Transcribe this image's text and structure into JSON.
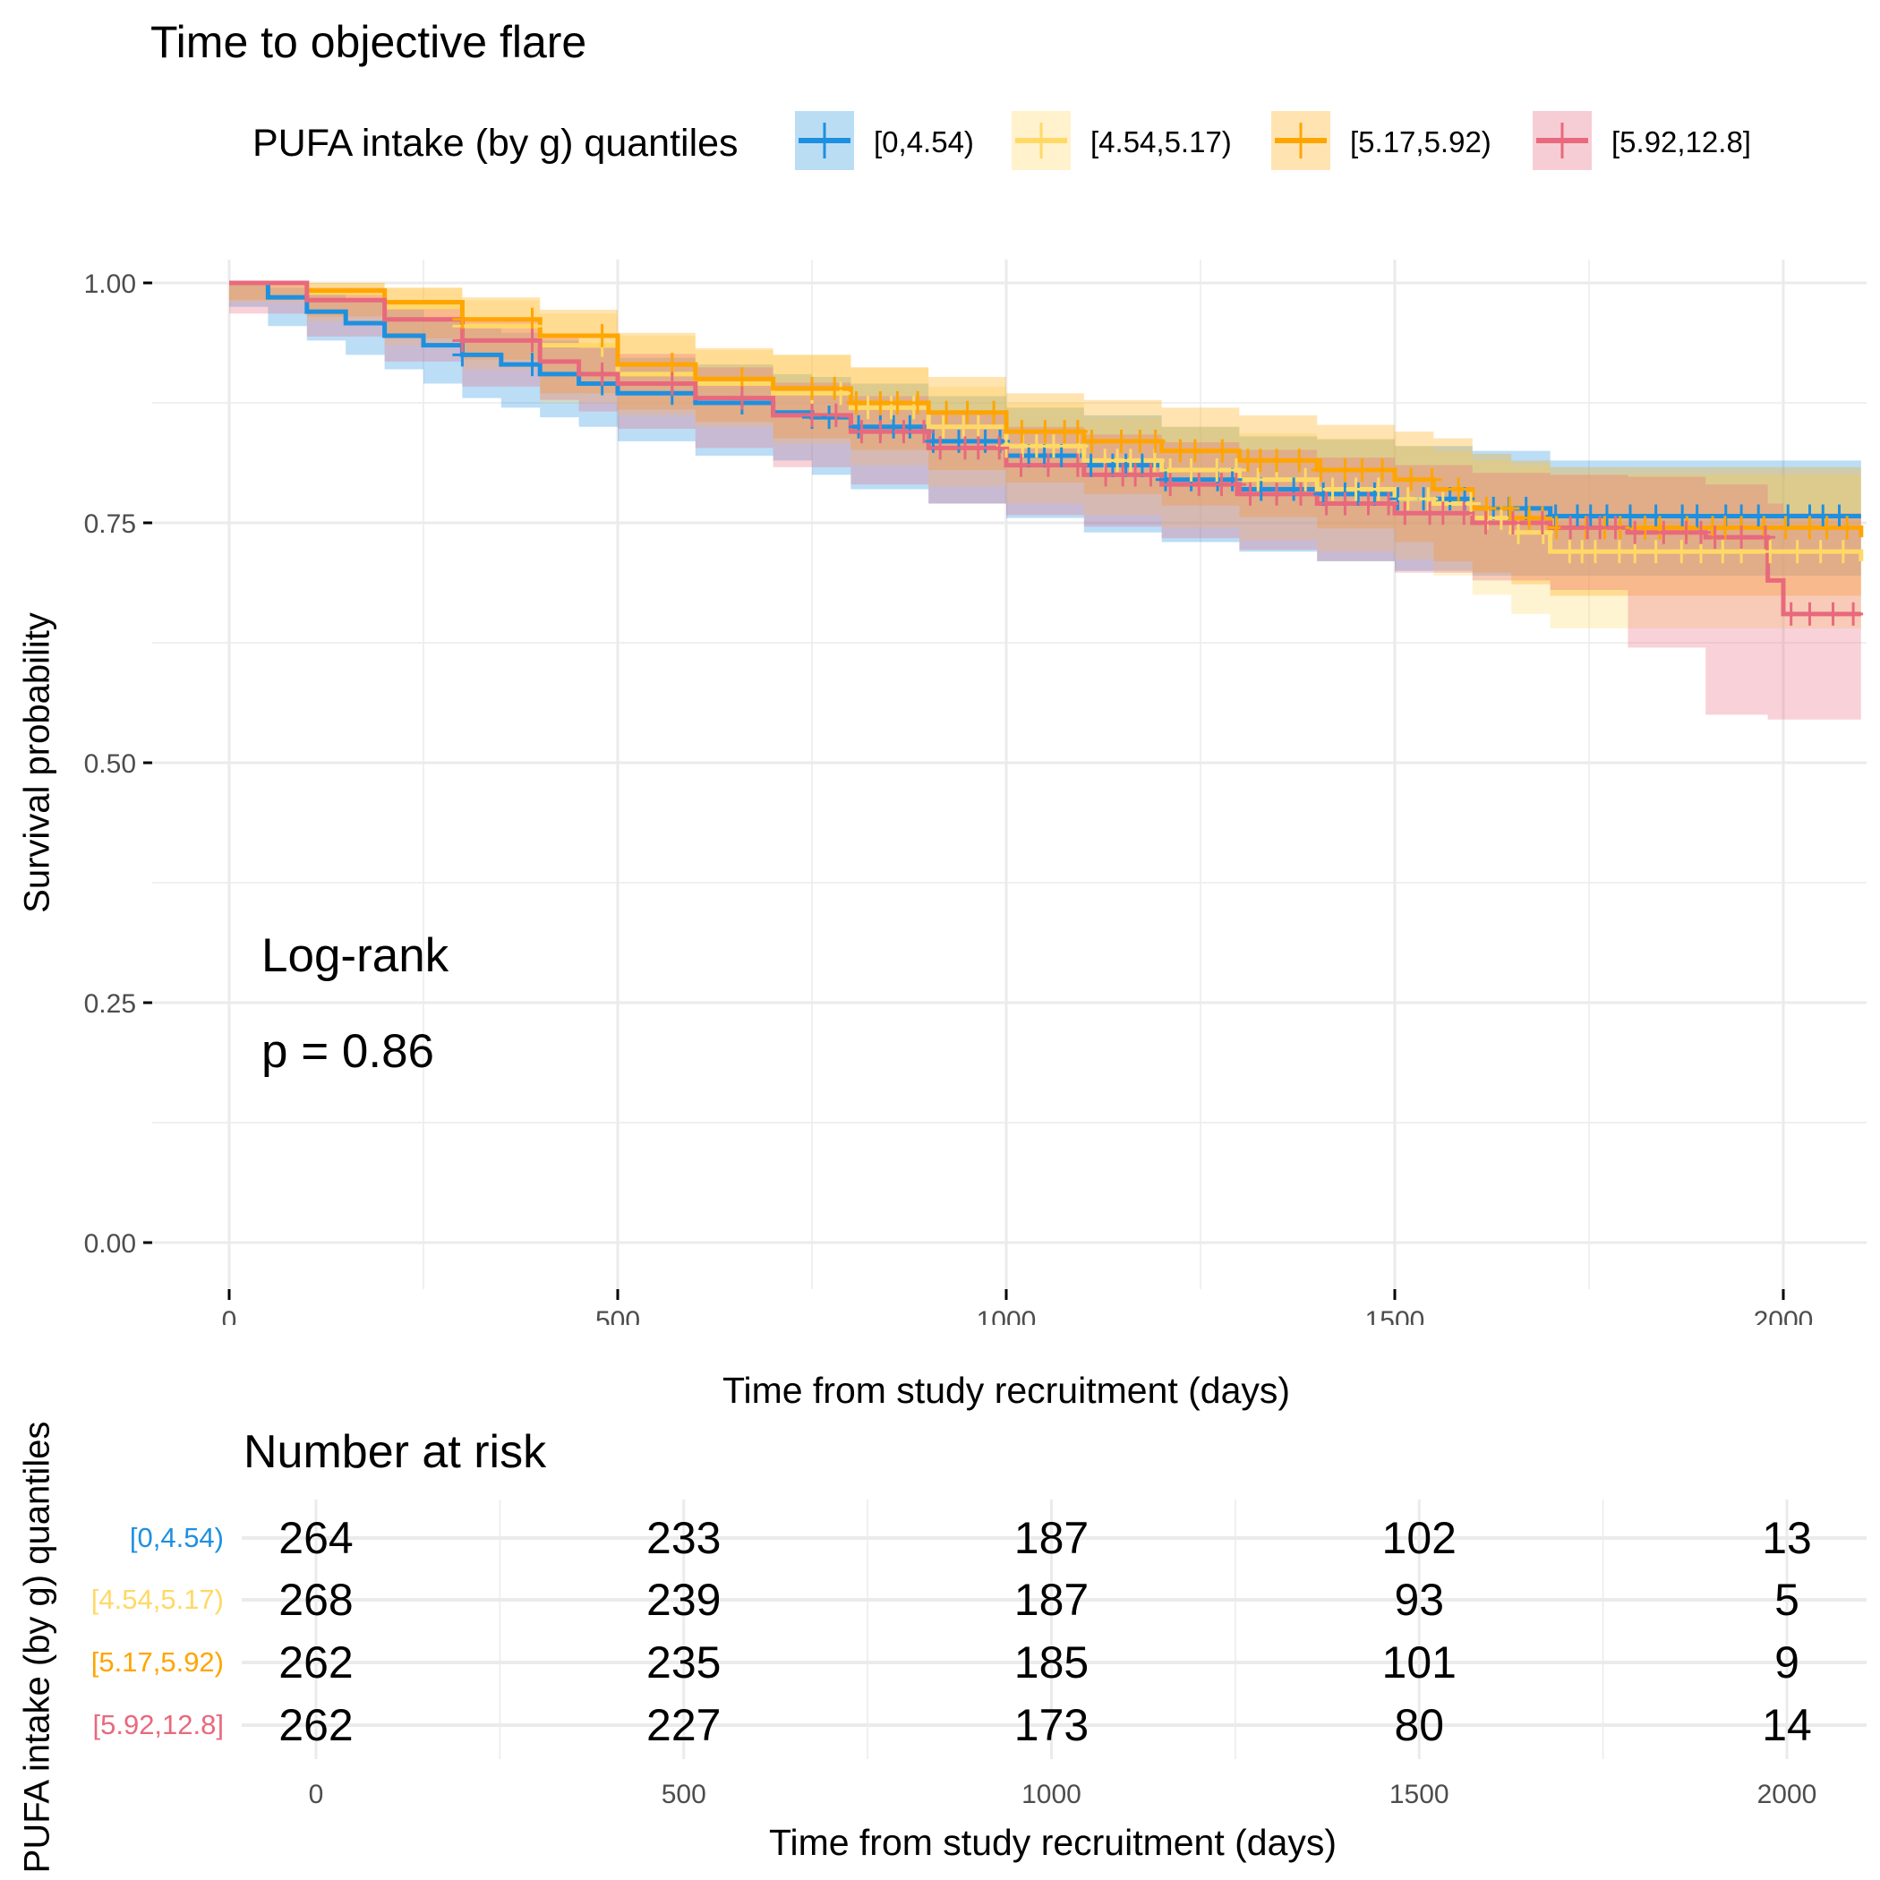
{
  "chart_data": {
    "type": "line",
    "subtype": "kaplan-meier",
    "title": "Time to objective flare",
    "xlabel": "Time from study recruitment (days)",
    "ylabel": "Survival probability",
    "xlim": [
      0,
      2100
    ],
    "ylim": [
      0,
      1
    ],
    "x_ticks": [
      0,
      500,
      1000,
      1500,
      2000
    ],
    "x_tick_labels": [
      "0",
      "500",
      "1000",
      "1500",
      "2000"
    ],
    "y_ticks": [
      0,
      0.25,
      0.5,
      0.75,
      1.0
    ],
    "y_tick_labels": [
      "0.00",
      "0.25",
      "0.50",
      "0.75",
      "1.00"
    ],
    "grid": true,
    "legend": {
      "title": "PUFA intake (by g) quantiles",
      "position": "top"
    },
    "annotation": {
      "line1": "Log-rank",
      "line2": "p = 0.86"
    },
    "series": [
      {
        "name": "[0,4.54)",
        "color": "#1E90E0",
        "fill": "#BBDDF4",
        "x": [
          0,
          50,
          100,
          150,
          200,
          250,
          300,
          350,
          400,
          450,
          500,
          600,
          700,
          750,
          800,
          900,
          1000,
          1100,
          1200,
          1300,
          1400,
          1500,
          1600,
          1700,
          2100
        ],
        "y": [
          1.0,
          0.985,
          0.97,
          0.958,
          0.945,
          0.935,
          0.925,
          0.915,
          0.905,
          0.895,
          0.885,
          0.875,
          0.865,
          0.86,
          0.85,
          0.835,
          0.82,
          0.81,
          0.795,
          0.785,
          0.78,
          0.775,
          0.765,
          0.757,
          0.757
        ],
        "lower": [
          1.0,
          0.975,
          0.955,
          0.94,
          0.925,
          0.91,
          0.895,
          0.88,
          0.87,
          0.86,
          0.85,
          0.835,
          0.82,
          0.815,
          0.8,
          0.785,
          0.77,
          0.755,
          0.74,
          0.73,
          0.72,
          0.71,
          0.7,
          0.695,
          0.695
        ],
        "upper": [
          1.0,
          0.995,
          0.99,
          0.982,
          0.972,
          0.962,
          0.955,
          0.948,
          0.94,
          0.932,
          0.922,
          0.915,
          0.905,
          0.902,
          0.895,
          0.882,
          0.87,
          0.862,
          0.85,
          0.84,
          0.837,
          0.83,
          0.825,
          0.815,
          0.815
        ]
      },
      {
        "name": "[4.54,5.17)",
        "color": "#FFD966",
        "fill": "#FFF2CC",
        "x": [
          0,
          100,
          200,
          300,
          400,
          500,
          600,
          700,
          800,
          900,
          1000,
          1100,
          1200,
          1300,
          1400,
          1500,
          1550,
          1600,
          1650,
          1700,
          2100
        ],
        "y": [
          1.0,
          0.99,
          0.975,
          0.955,
          0.935,
          0.905,
          0.895,
          0.885,
          0.87,
          0.85,
          0.83,
          0.815,
          0.805,
          0.795,
          0.785,
          0.775,
          0.77,
          0.755,
          0.74,
          0.72,
          0.71
        ],
        "lower": [
          1.0,
          0.98,
          0.96,
          0.935,
          0.91,
          0.875,
          0.862,
          0.85,
          0.832,
          0.81,
          0.788,
          0.77,
          0.758,
          0.745,
          0.732,
          0.72,
          0.712,
          0.695,
          0.675,
          0.655,
          0.64
        ],
        "upper": [
          1.0,
          1.0,
          0.995,
          0.982,
          0.968,
          0.945,
          0.93,
          0.925,
          0.912,
          0.892,
          0.875,
          0.86,
          0.85,
          0.843,
          0.838,
          0.83,
          0.825,
          0.815,
          0.81,
          0.8,
          0.79
        ]
      },
      {
        "name": "[5.17,5.92)",
        "color": "#FFA500",
        "fill": "#FFE4B2",
        "x": [
          0,
          100,
          200,
          300,
          400,
          500,
          600,
          700,
          800,
          900,
          1000,
          1100,
          1200,
          1300,
          1400,
          1500,
          1550,
          1600,
          1650,
          1700,
          2100
        ],
        "y": [
          1.0,
          0.992,
          0.98,
          0.962,
          0.945,
          0.915,
          0.9,
          0.89,
          0.875,
          0.865,
          0.845,
          0.835,
          0.825,
          0.815,
          0.805,
          0.795,
          0.785,
          0.765,
          0.755,
          0.745,
          0.735
        ],
        "lower": [
          1.0,
          0.982,
          0.965,
          0.942,
          0.92,
          0.885,
          0.868,
          0.855,
          0.838,
          0.826,
          0.805,
          0.792,
          0.78,
          0.768,
          0.756,
          0.744,
          0.73,
          0.71,
          0.698,
          0.686,
          0.674
        ],
        "upper": [
          1.0,
          1.0,
          0.995,
          0.985,
          0.972,
          0.948,
          0.932,
          0.925,
          0.912,
          0.902,
          0.885,
          0.878,
          0.87,
          0.862,
          0.852,
          0.845,
          0.838,
          0.822,
          0.815,
          0.808,
          0.8
        ]
      },
      {
        "name": "[5.92,12.8]",
        "color": "#E8697D",
        "fill": "#F7CDD5",
        "x": [
          0,
          100,
          200,
          300,
          400,
          450,
          500,
          600,
          700,
          800,
          900,
          1000,
          1100,
          1200,
          1300,
          1400,
          1500,
          1600,
          1700,
          1800,
          1900,
          1980,
          2000,
          2100
        ],
        "y": [
          1.0,
          0.982,
          0.962,
          0.94,
          0.918,
          0.905,
          0.895,
          0.88,
          0.862,
          0.845,
          0.828,
          0.81,
          0.8,
          0.79,
          0.78,
          0.77,
          0.76,
          0.75,
          0.745,
          0.74,
          0.735,
          0.69,
          0.655,
          0.655
        ],
        "lower": [
          1.0,
          0.968,
          0.944,
          0.918,
          0.892,
          0.878,
          0.866,
          0.848,
          0.828,
          0.808,
          0.79,
          0.77,
          0.758,
          0.746,
          0.734,
          0.722,
          0.71,
          0.698,
          0.69,
          0.68,
          0.62,
          0.55,
          0.545,
          0.545
        ],
        "upper": [
          1.0,
          0.995,
          0.982,
          0.962,
          0.944,
          0.934,
          0.926,
          0.912,
          0.896,
          0.882,
          0.866,
          0.85,
          0.842,
          0.834,
          0.826,
          0.818,
          0.81,
          0.802,
          0.8,
          0.798,
          0.79,
          0.77,
          0.76,
          0.76
        ]
      }
    ],
    "risk_table": {
      "title": "Number at risk",
      "ylabel": "PUFA intake (by g) quantiles",
      "xlabel": "Time from study recruitment (days)",
      "times": [
        0,
        500,
        1000,
        1500,
        2000
      ],
      "time_labels": [
        "0",
        "500",
        "1000",
        "1500",
        "2000"
      ],
      "rows": [
        {
          "group": "[0,4.54)",
          "color": "#1E90E0",
          "counts": [
            264,
            233,
            187,
            102,
            13
          ]
        },
        {
          "group": "[4.54,5.17)",
          "color": "#FFD966",
          "counts": [
            268,
            239,
            187,
            93,
            5
          ]
        },
        {
          "group": "[5.17,5.92)",
          "color": "#FFA500",
          "counts": [
            262,
            235,
            185,
            101,
            9
          ]
        },
        {
          "group": "[5.92,12.8]",
          "color": "#E8697D",
          "counts": [
            262,
            227,
            173,
            80,
            14
          ]
        }
      ]
    }
  }
}
